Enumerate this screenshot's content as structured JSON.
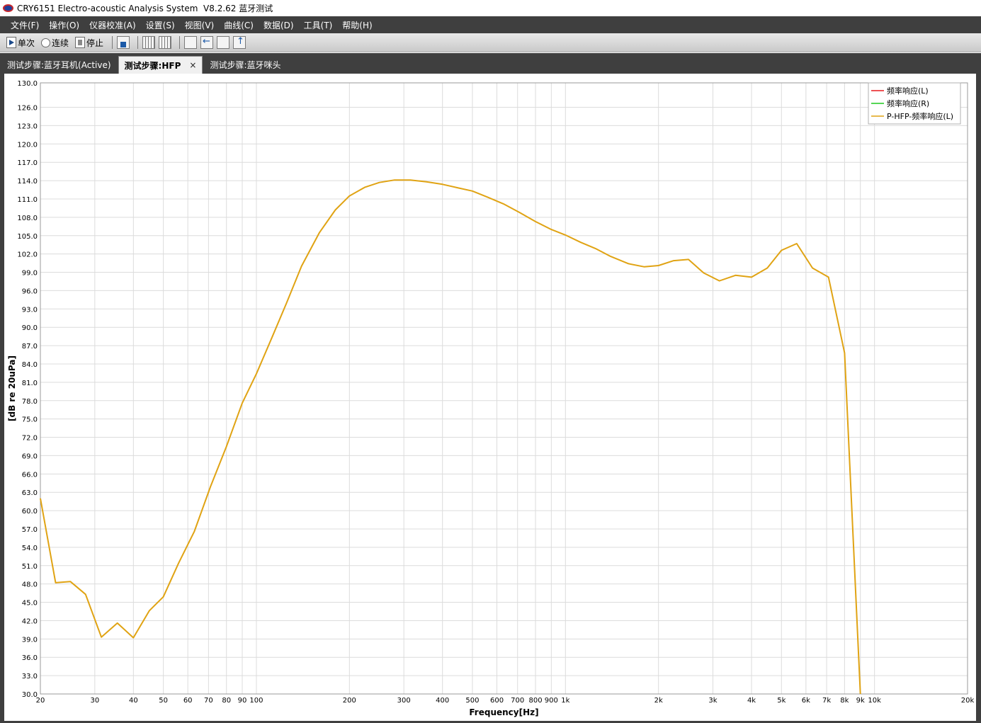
{
  "window": {
    "title": "CRY6151 Electro-acoustic Analysis System  V8.2.62 蓝牙测试"
  },
  "menu": [
    "文件(F)",
    "操作(O)",
    "仪器校准(A)",
    "设置(S)",
    "视图(V)",
    "曲线(C)",
    "数据(D)",
    "工具(T)",
    "帮助(H)"
  ],
  "toolbar": {
    "single_label": "单次",
    "continuous_label": "连续",
    "stop_label": "停止"
  },
  "tabs": [
    {
      "label": "测试步骤:蓝牙耳机(Active)",
      "active": false
    },
    {
      "label": "测试步骤:HFP",
      "active": true,
      "close": "×"
    },
    {
      "label": "测试步骤:蓝牙咪头",
      "active": false
    }
  ],
  "chart_data": {
    "type": "line",
    "xlabel": "Frequency[Hz]",
    "ylabel": "[dB re 20uPa]",
    "x_scale": "log",
    "xlim": [
      20,
      20000
    ],
    "ylim": [
      30,
      130
    ],
    "grid": true,
    "legend_position": "top-right",
    "yticks": [
      30,
      33,
      36,
      39,
      42,
      45,
      48,
      51,
      54,
      57,
      60,
      63,
      66,
      69,
      72,
      75,
      78,
      81,
      84,
      87,
      90,
      93,
      96,
      99,
      102,
      105,
      108,
      111,
      114,
      117,
      120,
      123,
      126,
      130
    ],
    "ytick_labels": [
      "30.0",
      "33.0",
      "36.0",
      "39.0",
      "42.0",
      "45.0",
      "48.0",
      "51.0",
      "54.0",
      "57.0",
      "60.0",
      "63.0",
      "66.0",
      "69.0",
      "72.0",
      "75.0",
      "78.0",
      "81.0",
      "84.0",
      "87.0",
      "90.0",
      "93.0",
      "96.0",
      "99.0",
      "102.0",
      "105.0",
      "108.0",
      "111.0",
      "114.0",
      "117.0",
      "120.0",
      "123.0",
      "126.0",
      "130.0"
    ],
    "xticks": [
      20,
      30,
      40,
      50,
      60,
      70,
      80,
      90,
      100,
      200,
      300,
      400,
      500,
      600,
      700,
      800,
      900,
      1000,
      2000,
      3000,
      4000,
      5000,
      6000,
      7000,
      8000,
      9000,
      10000,
      20000
    ],
    "xtick_labels": [
      "20",
      "30",
      "40",
      "50",
      "60",
      "70",
      "80",
      "90",
      "100",
      "200",
      "300",
      "400",
      "500",
      "600",
      "700",
      "800",
      "900",
      "1k",
      "2k",
      "3k",
      "4k",
      "5k",
      "6k",
      "7k",
      "8k",
      "9k",
      "10k",
      "20k"
    ],
    "series": [
      {
        "name": "频率响应(L)",
        "color": "#e8191c",
        "x": [],
        "y": []
      },
      {
        "name": "频率响应(R)",
        "color": "#1ec81e",
        "x": [],
        "y": []
      },
      {
        "name": "P-HFP-频率响应(L)",
        "color": "#e0a313",
        "x": [
          20,
          22.4,
          25,
          28,
          31.5,
          35.5,
          40,
          45,
          50,
          56,
          63,
          71,
          80,
          90,
          100,
          112,
          125,
          140,
          160,
          180,
          200,
          224,
          250,
          280,
          315,
          355,
          400,
          450,
          500,
          560,
          630,
          710,
          800,
          900,
          1000,
          1120,
          1250,
          1400,
          1600,
          1800,
          2000,
          2240,
          2500,
          2800,
          3150,
          3550,
          4000,
          4500,
          5000,
          5600,
          6300,
          7100,
          8000,
          9000
        ],
        "y": [
          62.0,
          48.2,
          48.4,
          46.3,
          39.3,
          41.6,
          39.2,
          43.6,
          45.9,
          51.4,
          56.6,
          63.9,
          70.5,
          77.6,
          82.4,
          88.2,
          93.9,
          100.0,
          105.5,
          109.2,
          111.5,
          112.9,
          113.7,
          114.1,
          114.1,
          113.8,
          113.4,
          112.8,
          112.3,
          111.3,
          110.2,
          108.8,
          107.3,
          106.0,
          105.1,
          103.9,
          102.9,
          101.6,
          100.4,
          99.9,
          100.1,
          100.9,
          101.1,
          98.9,
          97.6,
          98.5,
          98.2,
          99.7,
          102.6,
          103.7,
          99.7,
          98.2,
          85.8,
          30.0
        ]
      }
    ]
  }
}
